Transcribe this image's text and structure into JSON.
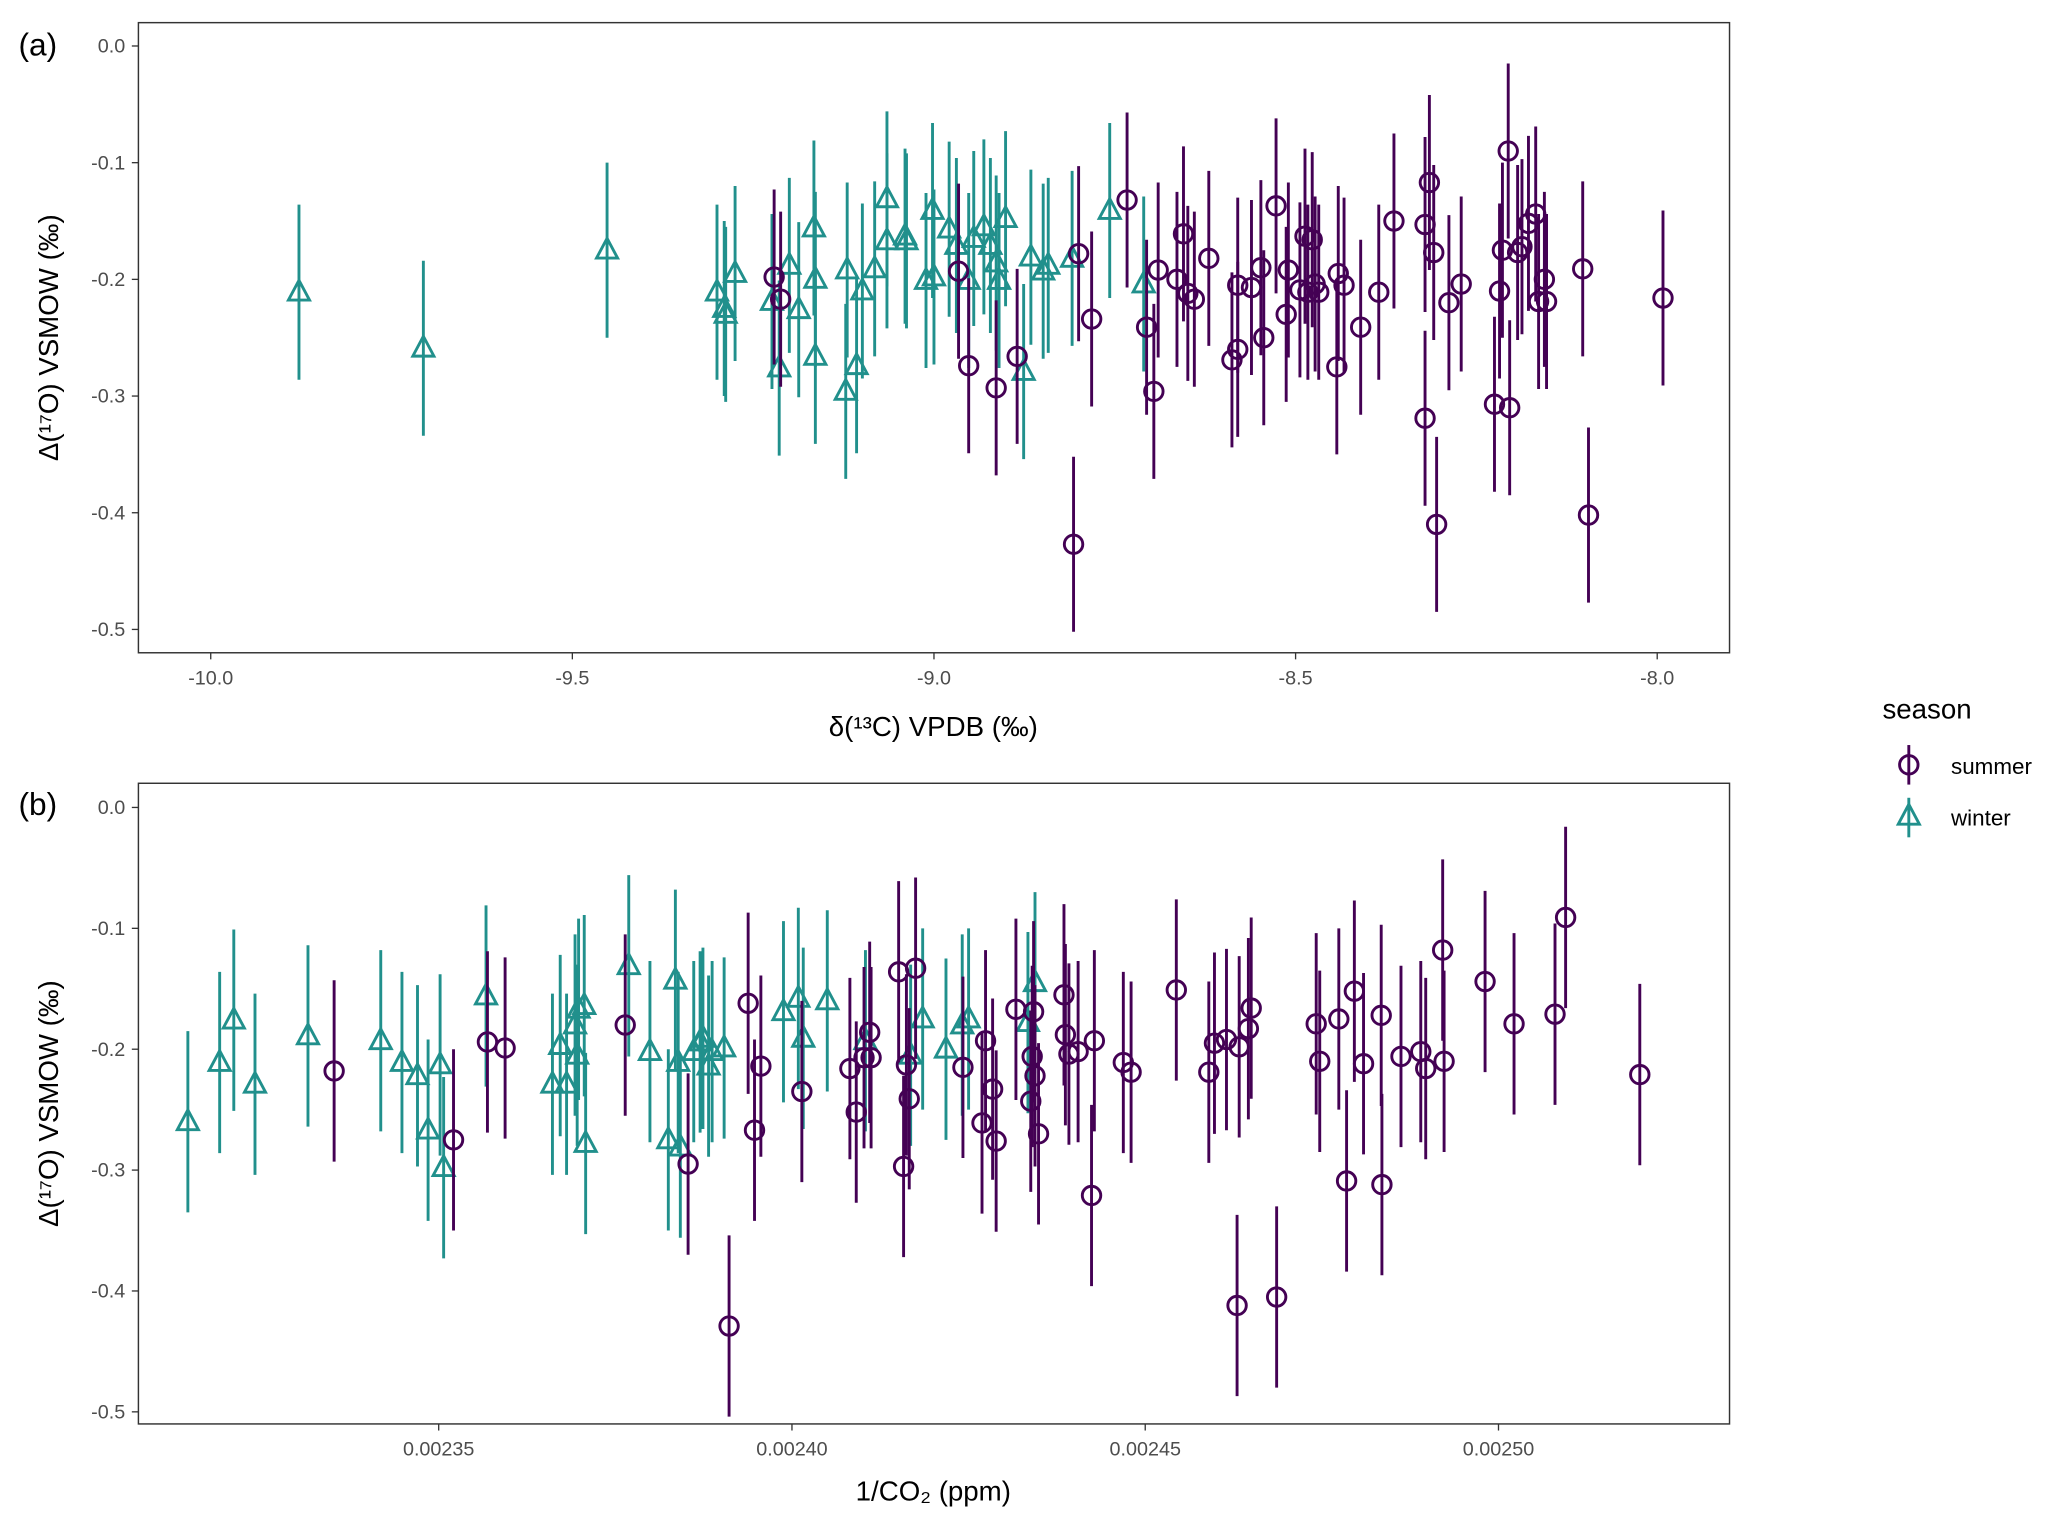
{
  "legend": {
    "title": "season",
    "items": [
      {
        "label": "summer",
        "color": "#440154",
        "shape": "circle"
      },
      {
        "label": "winter",
        "color": "#21908C",
        "shape": "triangle"
      }
    ]
  },
  "chart_data": [
    {
      "type": "scatter",
      "panel_label": "(a)",
      "xlabel": "δ(¹³C) VPDB (‰)",
      "ylabel": "Δ(¹⁷O) VSMOW (‰)",
      "xlim": [
        -10.1,
        -7.9
      ],
      "ylim": [
        -0.52,
        0.02
      ],
      "xticks": [
        -10.0,
        -9.5,
        -9.0,
        -8.5,
        -8.0
      ],
      "xtick_labels": [
        "-10.0",
        "-9.5",
        "-9.0",
        "-8.5",
        "-8.0"
      ],
      "yticks": [
        0.0,
        -0.1,
        -0.2,
        -0.3,
        -0.4,
        -0.5
      ],
      "ytick_labels": [
        "0.0",
        "-0.1",
        "-0.2",
        "-0.3",
        "-0.4",
        "-0.5"
      ],
      "grid": false,
      "error_halfwidth": 0.075,
      "series": [
        {
          "name": "winter",
          "points": [
            [
              -9.878,
              -0.211
            ],
            [
              -9.706,
              -0.259
            ],
            [
              -9.452,
              -0.175
            ],
            [
              -9.3,
              -0.211
            ],
            [
              -9.29,
              -0.225
            ],
            [
              -9.288,
              -0.23
            ],
            [
              -9.275,
              -0.195
            ],
            [
              -9.224,
              -0.219
            ],
            [
              -9.214,
              -0.276
            ],
            [
              -9.2,
              -0.188
            ],
            [
              -9.187,
              -0.226
            ],
            [
              -9.166,
              -0.156
            ],
            [
              -9.164,
              -0.2
            ],
            [
              -9.164,
              -0.266
            ],
            [
              -9.122,
              -0.296
            ],
            [
              -9.12,
              -0.192
            ],
            [
              -9.107,
              -0.274
            ],
            [
              -9.099,
              -0.21
            ],
            [
              -9.082,
              -0.191
            ],
            [
              -9.065,
              -0.131
            ],
            [
              -9.065,
              -0.167
            ],
            [
              -9.04,
              -0.163
            ],
            [
              -9.038,
              -0.167
            ],
            [
              -9.011,
              -0.201
            ],
            [
              -9.002,
              -0.141
            ],
            [
              -9.0,
              -0.198
            ],
            [
              -8.979,
              -0.157
            ],
            [
              -8.969,
              -0.171
            ],
            [
              -8.952,
              -0.201
            ],
            [
              -8.945,
              -0.165
            ],
            [
              -8.931,
              -0.155
            ],
            [
              -8.922,
              -0.171
            ],
            [
              -8.914,
              -0.186
            ],
            [
              -8.91,
              -0.201
            ],
            [
              -8.901,
              -0.148
            ],
            [
              -8.876,
              -0.279
            ],
            [
              -8.866,
              -0.181
            ],
            [
              -8.849,
              -0.193
            ],
            [
              -8.842,
              -0.188
            ],
            [
              -8.809,
              -0.182
            ],
            [
              -8.757,
              -0.141
            ],
            [
              -8.71,
              -0.204
            ]
          ]
        },
        {
          "name": "summer",
          "points": [
            [
              -9.221,
              -0.198
            ],
            [
              -9.212,
              -0.217
            ],
            [
              -8.966,
              -0.193
            ],
            [
              -8.952,
              -0.274
            ],
            [
              -8.914,
              -0.293
            ],
            [
              -8.885,
              -0.266
            ],
            [
              -8.807,
              -0.427
            ],
            [
              -8.8,
              -0.178
            ],
            [
              -8.782,
              -0.234
            ],
            [
              -8.733,
              -0.132
            ],
            [
              -8.706,
              -0.241
            ],
            [
              -8.696,
              -0.296
            ],
            [
              -8.69,
              -0.192
            ],
            [
              -8.664,
              -0.2
            ],
            [
              -8.655,
              -0.161
            ],
            [
              -8.649,
              -0.212
            ],
            [
              -8.64,
              -0.217
            ],
            [
              -8.62,
              -0.182
            ],
            [
              -8.588,
              -0.269
            ],
            [
              -8.58,
              -0.26
            ],
            [
              -8.58,
              -0.205
            ],
            [
              -8.561,
              -0.207
            ],
            [
              -8.548,
              -0.19
            ],
            [
              -8.544,
              -0.25
            ],
            [
              -8.527,
              -0.137
            ],
            [
              -8.513,
              -0.23
            ],
            [
              -8.51,
              -0.192
            ],
            [
              -8.494,
              -0.209
            ],
            [
              -8.487,
              -0.163
            ],
            [
              -8.483,
              -0.211
            ],
            [
              -8.477,
              -0.166
            ],
            [
              -8.473,
              -0.204
            ],
            [
              -8.468,
              -0.211
            ],
            [
              -8.443,
              -0.275
            ],
            [
              -8.441,
              -0.195
            ],
            [
              -8.433,
              -0.205
            ],
            [
              -8.41,
              -0.241
            ],
            [
              -8.385,
              -0.211
            ],
            [
              -8.364,
              -0.15
            ],
            [
              -8.321,
              -0.319
            ],
            [
              -8.321,
              -0.153
            ],
            [
              -8.315,
              -0.117
            ],
            [
              -8.309,
              -0.177
            ],
            [
              -8.305,
              -0.41
            ],
            [
              -8.288,
              -0.22
            ],
            [
              -8.271,
              -0.204
            ],
            [
              -8.225,
              -0.307
            ],
            [
              -8.218,
              -0.21
            ],
            [
              -8.214,
              -0.175
            ],
            [
              -8.206,
              -0.09
            ],
            [
              -8.204,
              -0.31
            ],
            [
              -8.193,
              -0.177
            ],
            [
              -8.187,
              -0.172
            ],
            [
              -8.178,
              -0.152
            ],
            [
              -8.168,
              -0.144
            ],
            [
              -8.164,
              -0.219
            ],
            [
              -8.156,
              -0.2
            ],
            [
              -8.153,
              -0.219
            ],
            [
              -8.103,
              -0.191
            ],
            [
              -8.095,
              -0.402
            ],
            [
              -7.992,
              -0.216
            ]
          ]
        }
      ]
    },
    {
      "type": "scatter",
      "panel_label": "(b)",
      "xlabel": "1/CO₂ (ppm)",
      "ylabel": "Δ(¹⁷O) VSMOW (‰)",
      "xlim": [
        0.0023075,
        0.0025327
      ],
      "ylim": [
        -0.51,
        0.02
      ],
      "xticks": [
        0.00235,
        0.0024,
        0.00245,
        0.0025
      ],
      "xtick_labels": [
        "0.00235",
        "0.00240",
        "0.00245",
        "0.00250"
      ],
      "yticks": [
        0.0,
        -0.1,
        -0.2,
        -0.3,
        -0.4,
        -0.5
      ],
      "ytick_labels": [
        "0.0",
        "-0.1",
        "-0.2",
        "-0.3",
        "-0.4",
        "-0.5"
      ],
      "grid": false,
      "error_halfwidth": 0.075,
      "series": [
        {
          "name": "winter",
          "points": [
            [
              0.0023145,
              -0.26
            ],
            [
              0.002319,
              -0.211
            ],
            [
              0.002321,
              -0.176
            ],
            [
              0.002324,
              -0.229
            ],
            [
              0.0023315,
              -0.189
            ],
            [
              0.0023418,
              -0.193
            ],
            [
              0.0023448,
              -0.211
            ],
            [
              0.002347,
              -0.222
            ],
            [
              0.0023485,
              -0.267
            ],
            [
              0.0023502,
              -0.213
            ],
            [
              0.0023507,
              -0.298
            ],
            [
              0.0023567,
              -0.156
            ],
            [
              0.0023661,
              -0.229
            ],
            [
              0.0023672,
              -0.197
            ],
            [
              0.0023681,
              -0.229
            ],
            [
              0.0023693,
              -0.18
            ],
            [
              0.0023696,
              -0.205
            ],
            [
              0.0023698,
              -0.167
            ],
            [
              0.0023706,
              -0.164
            ],
            [
              0.0023708,
              -0.278
            ],
            [
              0.0023769,
              -0.131
            ],
            [
              0.0023799,
              -0.202
            ],
            [
              0.0023825,
              -0.275
            ],
            [
              0.0023835,
              -0.143
            ],
            [
              0.0023839,
              -0.211
            ],
            [
              0.0023842,
              -0.281
            ],
            [
              0.0023861,
              -0.202
            ],
            [
              0.002387,
              -0.194
            ],
            [
              0.0023874,
              -0.191
            ],
            [
              0.0023882,
              -0.214
            ],
            [
              0.0023887,
              -0.202
            ],
            [
              0.0023904,
              -0.199
            ],
            [
              0.0023988,
              -0.169
            ],
            [
              0.0024009,
              -0.158
            ],
            [
              0.0024016,
              -0.191
            ],
            [
              0.002405,
              -0.16
            ],
            [
              0.0024104,
              -0.193
            ],
            [
              0.0024168,
              -0.205
            ],
            [
              0.0024185,
              -0.175
            ],
            [
              0.0024218,
              -0.2
            ],
            [
              0.0024241,
              -0.18
            ],
            [
              0.002425,
              -0.175
            ],
            [
              0.0024334,
              -0.178
            ],
            [
              0.0024344,
              -0.145
            ]
          ]
        },
        {
          "name": "summer",
          "points": [
            [
              0.0023352,
              -0.218
            ],
            [
              0.0023521,
              -0.275
            ],
            [
              0.0023569,
              -0.194
            ],
            [
              0.0023594,
              -0.199
            ],
            [
              0.0023764,
              -0.18
            ],
            [
              0.0023853,
              -0.295
            ],
            [
              0.0023911,
              -0.429
            ],
            [
              0.0023938,
              -0.162
            ],
            [
              0.0023947,
              -0.267
            ],
            [
              0.0023956,
              -0.214
            ],
            [
              0.0024014,
              -0.235
            ],
            [
              0.0024082,
              -0.216
            ],
            [
              0.0024091,
              -0.252
            ],
            [
              0.0024102,
              -0.207
            ],
            [
              0.002411,
              -0.186
            ],
            [
              0.0024112,
              -0.207
            ],
            [
              0.0024151,
              -0.136
            ],
            [
              0.0024158,
              -0.297
            ],
            [
              0.0024162,
              -0.213
            ],
            [
              0.0024166,
              -0.241
            ],
            [
              0.0024175,
              -0.133
            ],
            [
              0.0024242,
              -0.215
            ],
            [
              0.0024269,
              -0.261
            ],
            [
              0.0024274,
              -0.193
            ],
            [
              0.0024284,
              -0.233
            ],
            [
              0.0024289,
              -0.276
            ],
            [
              0.0024317,
              -0.167
            ],
            [
              0.0024338,
              -0.243
            ],
            [
              0.002434,
              -0.206
            ],
            [
              0.0024342,
              -0.169
            ],
            [
              0.0024344,
              -0.222
            ],
            [
              0.0024349,
              -0.27
            ],
            [
              0.0024385,
              -0.155
            ],
            [
              0.0024387,
              -0.188
            ],
            [
              0.0024392,
              -0.204
            ],
            [
              0.0024405,
              -0.202
            ],
            [
              0.0024424,
              -0.321
            ],
            [
              0.0024428,
              -0.193
            ],
            [
              0.0024469,
              -0.211
            ],
            [
              0.002448,
              -0.219
            ],
            [
              0.0024544,
              -0.151
            ],
            [
              0.002459,
              -0.219
            ],
            [
              0.0024598,
              -0.195
            ],
            [
              0.0024615,
              -0.192
            ],
            [
              0.002463,
              -0.412
            ],
            [
              0.0024633,
              -0.198
            ],
            [
              0.0024646,
              -0.183
            ],
            [
              0.002465,
              -0.166
            ],
            [
              0.0024686,
              -0.405
            ],
            [
              0.0024742,
              -0.179
            ],
            [
              0.0024747,
              -0.21
            ],
            [
              0.0024774,
              -0.175
            ],
            [
              0.0024785,
              -0.309
            ],
            [
              0.0024796,
              -0.152
            ],
            [
              0.0024809,
              -0.212
            ],
            [
              0.0024834,
              -0.172
            ],
            [
              0.0024835,
              -0.312
            ],
            [
              0.0024862,
              -0.206
            ],
            [
              0.002489,
              -0.202
            ],
            [
              0.0024897,
              -0.216
            ],
            [
              0.0024921,
              -0.118
            ],
            [
              0.0024923,
              -0.21
            ],
            [
              0.0024981,
              -0.144
            ],
            [
              0.0025022,
              -0.179
            ],
            [
              0.002508,
              -0.171
            ],
            [
              0.0025095,
              -0.091
            ],
            [
              0.00252,
              -0.221
            ]
          ]
        }
      ]
    }
  ]
}
